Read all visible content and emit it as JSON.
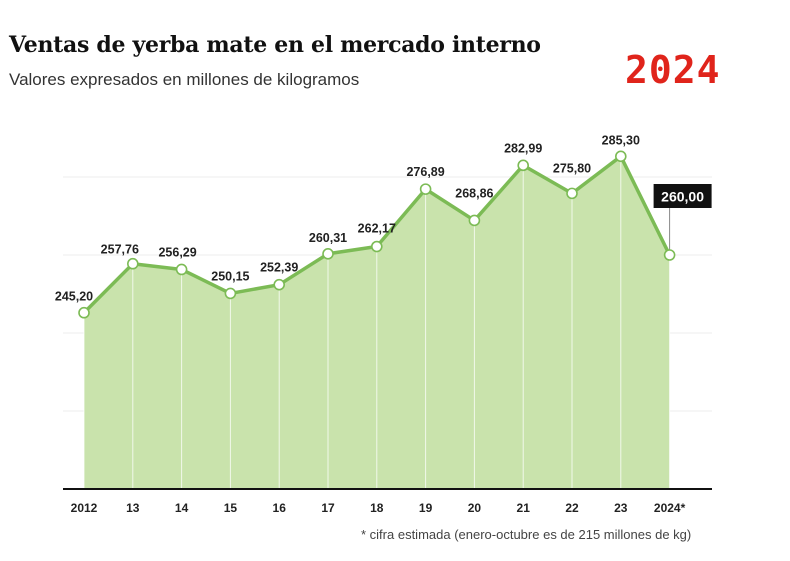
{
  "header": {
    "title": "Ventas de yerba mate en el mercado interno",
    "subtitle": "Valores expresados en millones de kilogramos",
    "year_badge": "2024"
  },
  "footnote": "* cifra estimada (enero-octubre es de 215 millones de kg)",
  "colors": {
    "area_fill": "#c9e3ac",
    "line": "#7cbb55",
    "highlight_bg": "#111111",
    "badge": "#e0241b"
  },
  "chart_data": {
    "type": "area",
    "title": "Ventas de yerba mate en el mercado interno",
    "subtitle": "Valores expresados en millones de kilogramos",
    "xlabel": "",
    "ylabel": "",
    "categories": [
      "2012",
      "13",
      "14",
      "15",
      "16",
      "17",
      "18",
      "19",
      "20",
      "21",
      "22",
      "23",
      "2024*"
    ],
    "values": [
      245.2,
      257.76,
      256.29,
      250.15,
      252.39,
      260.31,
      262.17,
      276.89,
      268.86,
      282.99,
      275.8,
      285.3,
      260.0
    ],
    "labels": [
      "245,20",
      "257,76",
      "256,29",
      "250,15",
      "252,39",
      "260,31",
      "262,17",
      "276,89",
      "268,86",
      "282,99",
      "275,80",
      "285,30",
      "260,00"
    ],
    "highlight_index": 12,
    "ylim": [
      200,
      300
    ],
    "grid": true,
    "legend": "none"
  }
}
